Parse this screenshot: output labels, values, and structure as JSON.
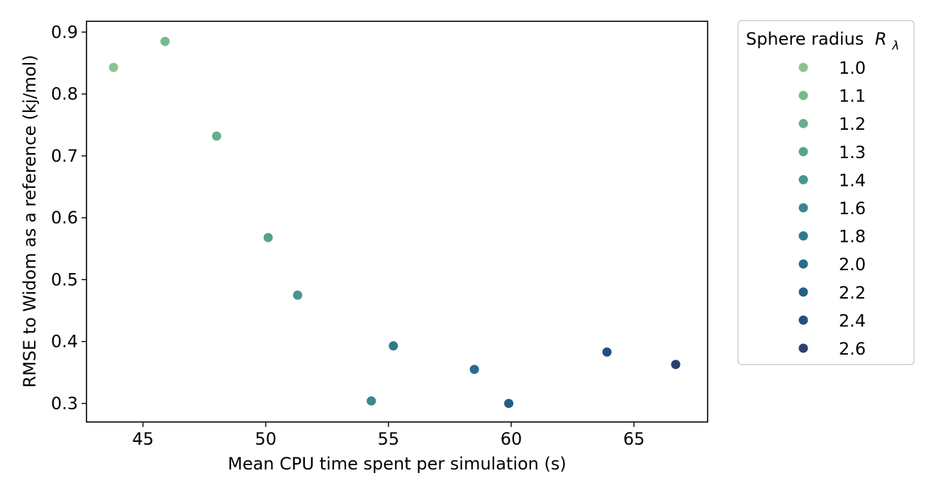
{
  "chart_data": {
    "type": "scatter",
    "xlabel": "Mean CPU time spent per simulation (s)",
    "ylabel": "RMSE to Widom as a reference (kj/mol)",
    "xlim": [
      42.7,
      68.0
    ],
    "ylim": [
      0.27,
      0.9175
    ],
    "xticks": [
      45,
      50,
      55,
      60,
      65
    ],
    "yticks": [
      0.3,
      0.4,
      0.5,
      0.6,
      0.7,
      0.8,
      0.9
    ],
    "xtick_labels": [
      "45",
      "50",
      "55",
      "60",
      "65"
    ],
    "ytick_labels": [
      "0.3",
      "0.4",
      "0.5",
      "0.6",
      "0.7",
      "0.8",
      "0.9"
    ],
    "grid": false,
    "legend": {
      "title": "Sphere radius",
      "title_symbol": "R",
      "title_subscript": "λ",
      "placement": "outside-right-top"
    },
    "series": [
      {
        "name": "1.0",
        "color": "#8cc391",
        "x": [
          43.8
        ],
        "y": [
          0.843
        ]
      },
      {
        "name": "1.1",
        "color": "#78b98f",
        "x": [
          45.9
        ],
        "y": [
          0.885
        ]
      },
      {
        "name": "1.2",
        "color": "#66ae8d",
        "x": [
          48.0
        ],
        "y": [
          0.732
        ]
      },
      {
        "name": "1.3",
        "color": "#56a28d",
        "x": [
          50.1
        ],
        "y": [
          0.568
        ]
      },
      {
        "name": "1.4",
        "color": "#47958d",
        "x": [
          51.3
        ],
        "y": [
          0.475
        ]
      },
      {
        "name": "1.6",
        "color": "#3b878d",
        "x": [
          54.3
        ],
        "y": [
          0.304
        ]
      },
      {
        "name": "1.8",
        "color": "#307a8c",
        "x": [
          55.2
        ],
        "y": [
          0.393
        ]
      },
      {
        "name": "2.0",
        "color": "#286d8a",
        "x": [
          58.5
        ],
        "y": [
          0.355
        ]
      },
      {
        "name": "2.2",
        "color": "#255e87",
        "x": [
          59.9
        ],
        "y": [
          0.3
        ]
      },
      {
        "name": "2.4",
        "color": "#284f80",
        "x": [
          63.9
        ],
        "y": [
          0.383
        ]
      },
      {
        "name": "2.6",
        "color": "#2c3f73",
        "x": [
          66.7
        ],
        "y": [
          0.363
        ]
      }
    ]
  }
}
